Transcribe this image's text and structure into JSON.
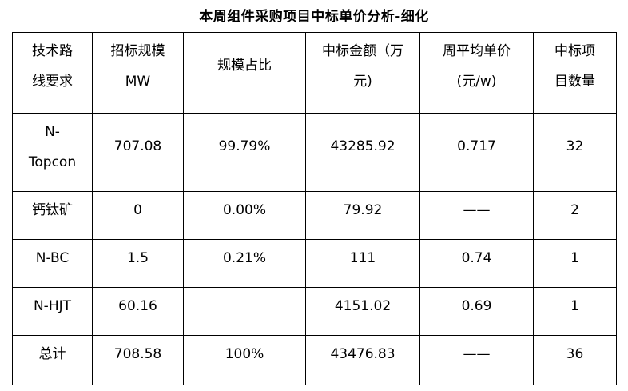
{
  "title": "本周组件采购项目中标单价分析-细化",
  "headers": [
    "技术路\n线要求",
    "招标规模\nMW",
    "规模占比",
    "中标金额（万\n元)",
    "周平均单价\n(元/w)",
    "中标项\n目数量"
  ],
  "rows": [
    {
      "tech": "N-\nTopcon",
      "scale": "707.08",
      "share": "99.79%",
      "amount": "43285.92",
      "price": "0.717",
      "count": "32"
    },
    {
      "tech": "钙钛矿",
      "scale": "0",
      "share": "0.00%",
      "amount": "79.92",
      "price": "——",
      "count": "2"
    },
    {
      "tech": "N-BC",
      "scale": "1.5",
      "share": "0.21%",
      "amount": "111",
      "price": "0.74",
      "count": "1"
    },
    {
      "tech": "N-HJT",
      "scale": "60.16",
      "share": "",
      "amount": "4151.02",
      "price": "0.69",
      "count": "1"
    },
    {
      "tech": "总计",
      "scale": "708.58",
      "share": "100%",
      "amount": "43476.83",
      "price": "——",
      "count": "36"
    }
  ]
}
